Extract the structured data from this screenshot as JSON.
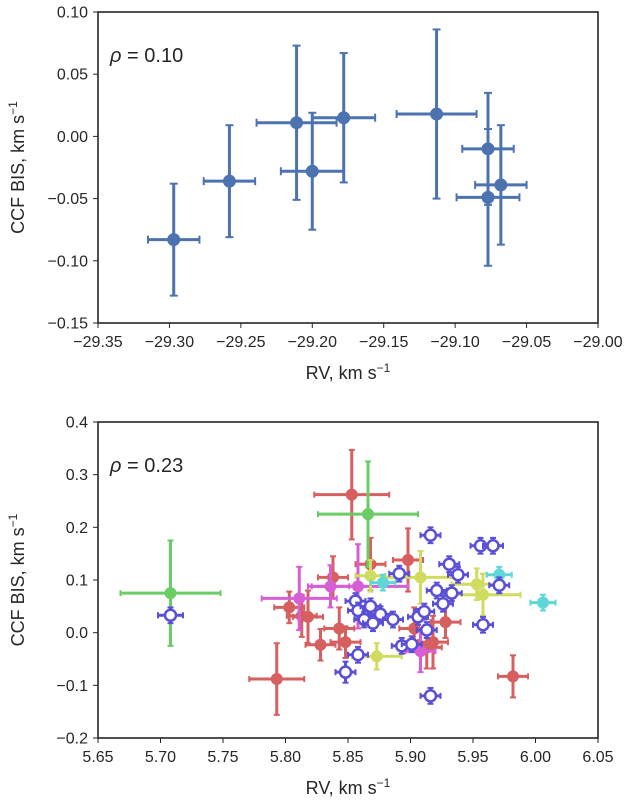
{
  "chart_data": [
    {
      "type": "scatter",
      "xlabel": "RV, km s",
      "xlabel_sup": "−1",
      "ylabel": "CCF BIS, km s",
      "ylabel_sup": "−1",
      "annotation_symbol": "ρ",
      "annotation_value": " = 0.10",
      "xlim": [
        -29.35,
        -29.0
      ],
      "ylim": [
        -0.15,
        0.1
      ],
      "xticks": [
        -29.35,
        -29.3,
        -29.25,
        -29.2,
        -29.15,
        -29.1,
        -29.05,
        -29.0
      ],
      "xtick_labels": [
        "−29.35",
        "−29.30",
        "−29.25",
        "−29.20",
        "−29.15",
        "−29.10",
        "−29.05",
        "−29.00"
      ],
      "yticks": [
        -0.15,
        -0.1,
        -0.05,
        0.0,
        0.05,
        0.1
      ],
      "ytick_labels": [
        "−0.15",
        "−0.10",
        "−0.05",
        "0.00",
        "0.05",
        "0.10"
      ],
      "grid": false,
      "series": [
        {
          "color": "#4c72b0",
          "marker": "filled",
          "points": [
            {
              "x": -29.297,
              "y": -0.083,
              "xerr": 0.018,
              "yerr": 0.045
            },
            {
              "x": -29.258,
              "y": -0.036,
              "xerr": 0.018,
              "yerr": 0.045
            },
            {
              "x": -29.211,
              "y": 0.011,
              "xerr": 0.028,
              "yerr": 0.062
            },
            {
              "x": -29.2,
              "y": -0.028,
              "xerr": 0.022,
              "yerr": 0.047
            },
            {
              "x": -29.178,
              "y": 0.015,
              "xerr": 0.022,
              "yerr": 0.052
            },
            {
              "x": -29.113,
              "y": 0.018,
              "xerr": 0.028,
              "yerr": 0.068
            },
            {
              "x": -29.077,
              "y": -0.01,
              "xerr": 0.018,
              "yerr": 0.045
            },
            {
              "x": -29.068,
              "y": -0.039,
              "xerr": 0.018,
              "yerr": 0.048
            },
            {
              "x": -29.077,
              "y": -0.049,
              "xerr": 0.022,
              "yerr": 0.055
            }
          ]
        }
      ]
    },
    {
      "type": "scatter",
      "xlabel": "RV, km s",
      "xlabel_sup": "−1",
      "ylabel": "CCF BIS, km s",
      "ylabel_sup": "−1",
      "annotation_symbol": "ρ",
      "annotation_value": " = 0.23",
      "xlim": [
        5.65,
        6.05
      ],
      "ylim": [
        -0.2,
        0.4
      ],
      "xticks": [
        5.65,
        5.7,
        5.75,
        5.8,
        5.85,
        5.9,
        5.95,
        6.0,
        6.05
      ],
      "xtick_labels": [
        "5.65",
        "5.70",
        "5.75",
        "5.80",
        "5.85",
        "5.90",
        "5.95",
        "6.00",
        "6.05"
      ],
      "yticks": [
        -0.2,
        -0.1,
        0.0,
        0.1,
        0.2,
        0.3,
        0.4
      ],
      "ytick_labels": [
        "−0.2",
        "−0.1",
        "0.0",
        "0.1",
        "0.2",
        "0.3",
        "0.4"
      ],
      "grid": false,
      "series": [
        {
          "color": "#d65f5f",
          "marker": "filled",
          "points": [
            {
              "x": 5.853,
              "y": 0.262,
              "xerr": 0.03,
              "yerr": 0.085
            },
            {
              "x": 5.793,
              "y": -0.088,
              "xerr": 0.022,
              "yerr": 0.068
            },
            {
              "x": 5.982,
              "y": -0.083,
              "xerr": 0.012,
              "yerr": 0.04
            },
            {
              "x": 5.803,
              "y": 0.048,
              "xerr": 0.012,
              "yerr": 0.03
            },
            {
              "x": 5.813,
              "y": 0.032,
              "xerr": 0.012,
              "yerr": 0.04
            },
            {
              "x": 5.818,
              "y": 0.03,
              "xerr": 0.012,
              "yerr": 0.05
            },
            {
              "x": 5.828,
              "y": -0.023,
              "xerr": 0.012,
              "yerr": 0.03
            },
            {
              "x": 5.838,
              "y": 0.105,
              "xerr": 0.012,
              "yerr": 0.04
            },
            {
              "x": 5.843,
              "y": 0.008,
              "xerr": 0.012,
              "yerr": 0.04
            },
            {
              "x": 5.848,
              "y": -0.018,
              "xerr": 0.012,
              "yerr": 0.03
            },
            {
              "x": 5.868,
              "y": 0.13,
              "xerr": 0.012,
              "yerr": 0.05
            },
            {
              "x": 5.898,
              "y": 0.138,
              "xerr": 0.012,
              "yerr": 0.06
            },
            {
              "x": 5.903,
              "y": 0.008,
              "xerr": 0.012,
              "yerr": 0.04
            },
            {
              "x": 5.913,
              "y": -0.028,
              "xerr": 0.012,
              "yerr": 0.04
            },
            {
              "x": 5.918,
              "y": -0.018,
              "xerr": 0.012,
              "yerr": 0.05
            },
            {
              "x": 5.928,
              "y": 0.02,
              "xerr": 0.012,
              "yerr": 0.03
            }
          ]
        },
        {
          "color": "#6acc65",
          "marker": "filled",
          "points": [
            {
              "x": 5.708,
              "y": 0.075,
              "xerr": 0.04,
              "yerr": 0.1
            },
            {
              "x": 5.866,
              "y": 0.225,
              "xerr": 0.04,
              "yerr": 0.1
            }
          ]
        },
        {
          "color": "#d65fd6",
          "marker": "filled",
          "points": [
            {
              "x": 5.811,
              "y": 0.065,
              "xerr": 0.03,
              "yerr": 0.06
            },
            {
              "x": 5.836,
              "y": 0.088,
              "xerr": 0.015,
              "yerr": 0.04
            },
            {
              "x": 5.858,
              "y": 0.088,
              "xerr": 0.04,
              "yerr": 0.08
            },
            {
              "x": 5.908,
              "y": -0.035,
              "xerr": 0.012,
              "yerr": 0.04
            }
          ]
        },
        {
          "color": "#d0dc5f",
          "marker": "filled",
          "points": [
            {
              "x": 5.873,
              "y": -0.045,
              "xerr": 0.02,
              "yerr": 0.025
            },
            {
              "x": 5.908,
              "y": 0.105,
              "xerr": 0.03,
              "yerr": 0.05
            },
            {
              "x": 5.953,
              "y": 0.092,
              "xerr": 0.02,
              "yerr": 0.03
            },
            {
              "x": 5.958,
              "y": 0.072,
              "xerr": 0.03,
              "yerr": 0.04
            },
            {
              "x": 5.868,
              "y": 0.108,
              "xerr": 0.012,
              "yerr": 0.03
            }
          ]
        },
        {
          "color": "#5fd7d8",
          "marker": "filled",
          "points": [
            {
              "x": 5.878,
              "y": 0.095,
              "xerr": 0.01,
              "yerr": 0.015
            },
            {
              "x": 5.971,
              "y": 0.11,
              "xerr": 0.01,
              "yerr": 0.015
            },
            {
              "x": 6.006,
              "y": 0.057,
              "xerr": 0.01,
              "yerr": 0.015
            }
          ]
        },
        {
          "color": "#5a4fd6",
          "marker": "open",
          "points": [
            {
              "x": 5.708,
              "y": 0.033,
              "xerr": 0.01,
              "yerr": 0.015
            },
            {
              "x": 5.848,
              "y": -0.075,
              "xerr": 0.008,
              "yerr": 0.02
            },
            {
              "x": 5.858,
              "y": -0.042,
              "xerr": 0.008,
              "yerr": 0.015
            },
            {
              "x": 5.856,
              "y": 0.06,
              "xerr": 0.008,
              "yerr": 0.015
            },
            {
              "x": 5.858,
              "y": 0.042,
              "xerr": 0.008,
              "yerr": 0.015
            },
            {
              "x": 5.863,
              "y": 0.025,
              "xerr": 0.008,
              "yerr": 0.015
            },
            {
              "x": 5.868,
              "y": 0.05,
              "xerr": 0.008,
              "yerr": 0.015
            },
            {
              "x": 5.87,
              "y": 0.018,
              "xerr": 0.008,
              "yerr": 0.015
            },
            {
              "x": 5.876,
              "y": 0.035,
              "xerr": 0.008,
              "yerr": 0.015
            },
            {
              "x": 5.886,
              "y": 0.025,
              "xerr": 0.008,
              "yerr": 0.015
            },
            {
              "x": 5.893,
              "y": -0.025,
              "xerr": 0.008,
              "yerr": 0.015
            },
            {
              "x": 5.891,
              "y": 0.112,
              "xerr": 0.008,
              "yerr": 0.015
            },
            {
              "x": 5.901,
              "y": -0.022,
              "xerr": 0.008,
              "yerr": 0.015
            },
            {
              "x": 5.906,
              "y": 0.03,
              "xerr": 0.008,
              "yerr": 0.015
            },
            {
              "x": 5.911,
              "y": 0.04,
              "xerr": 0.008,
              "yerr": 0.015
            },
            {
              "x": 5.913,
              "y": 0.005,
              "xerr": 0.008,
              "yerr": 0.015
            },
            {
              "x": 5.916,
              "y": 0.185,
              "xerr": 0.008,
              "yerr": 0.015
            },
            {
              "x": 5.916,
              "y": -0.12,
              "xerr": 0.008,
              "yerr": 0.015
            },
            {
              "x": 5.921,
              "y": 0.08,
              "xerr": 0.008,
              "yerr": 0.015
            },
            {
              "x": 5.926,
              "y": 0.055,
              "xerr": 0.008,
              "yerr": 0.015
            },
            {
              "x": 5.931,
              "y": 0.13,
              "xerr": 0.008,
              "yerr": 0.015
            },
            {
              "x": 5.933,
              "y": 0.075,
              "xerr": 0.008,
              "yerr": 0.015
            },
            {
              "x": 5.938,
              "y": 0.11,
              "xerr": 0.008,
              "yerr": 0.015
            },
            {
              "x": 5.956,
              "y": 0.165,
              "xerr": 0.008,
              "yerr": 0.015
            },
            {
              "x": 5.958,
              "y": 0.015,
              "xerr": 0.008,
              "yerr": 0.015
            },
            {
              "x": 5.966,
              "y": 0.165,
              "xerr": 0.008,
              "yerr": 0.015
            },
            {
              "x": 5.971,
              "y": 0.09,
              "xerr": 0.008,
              "yerr": 0.015
            }
          ]
        }
      ]
    }
  ]
}
